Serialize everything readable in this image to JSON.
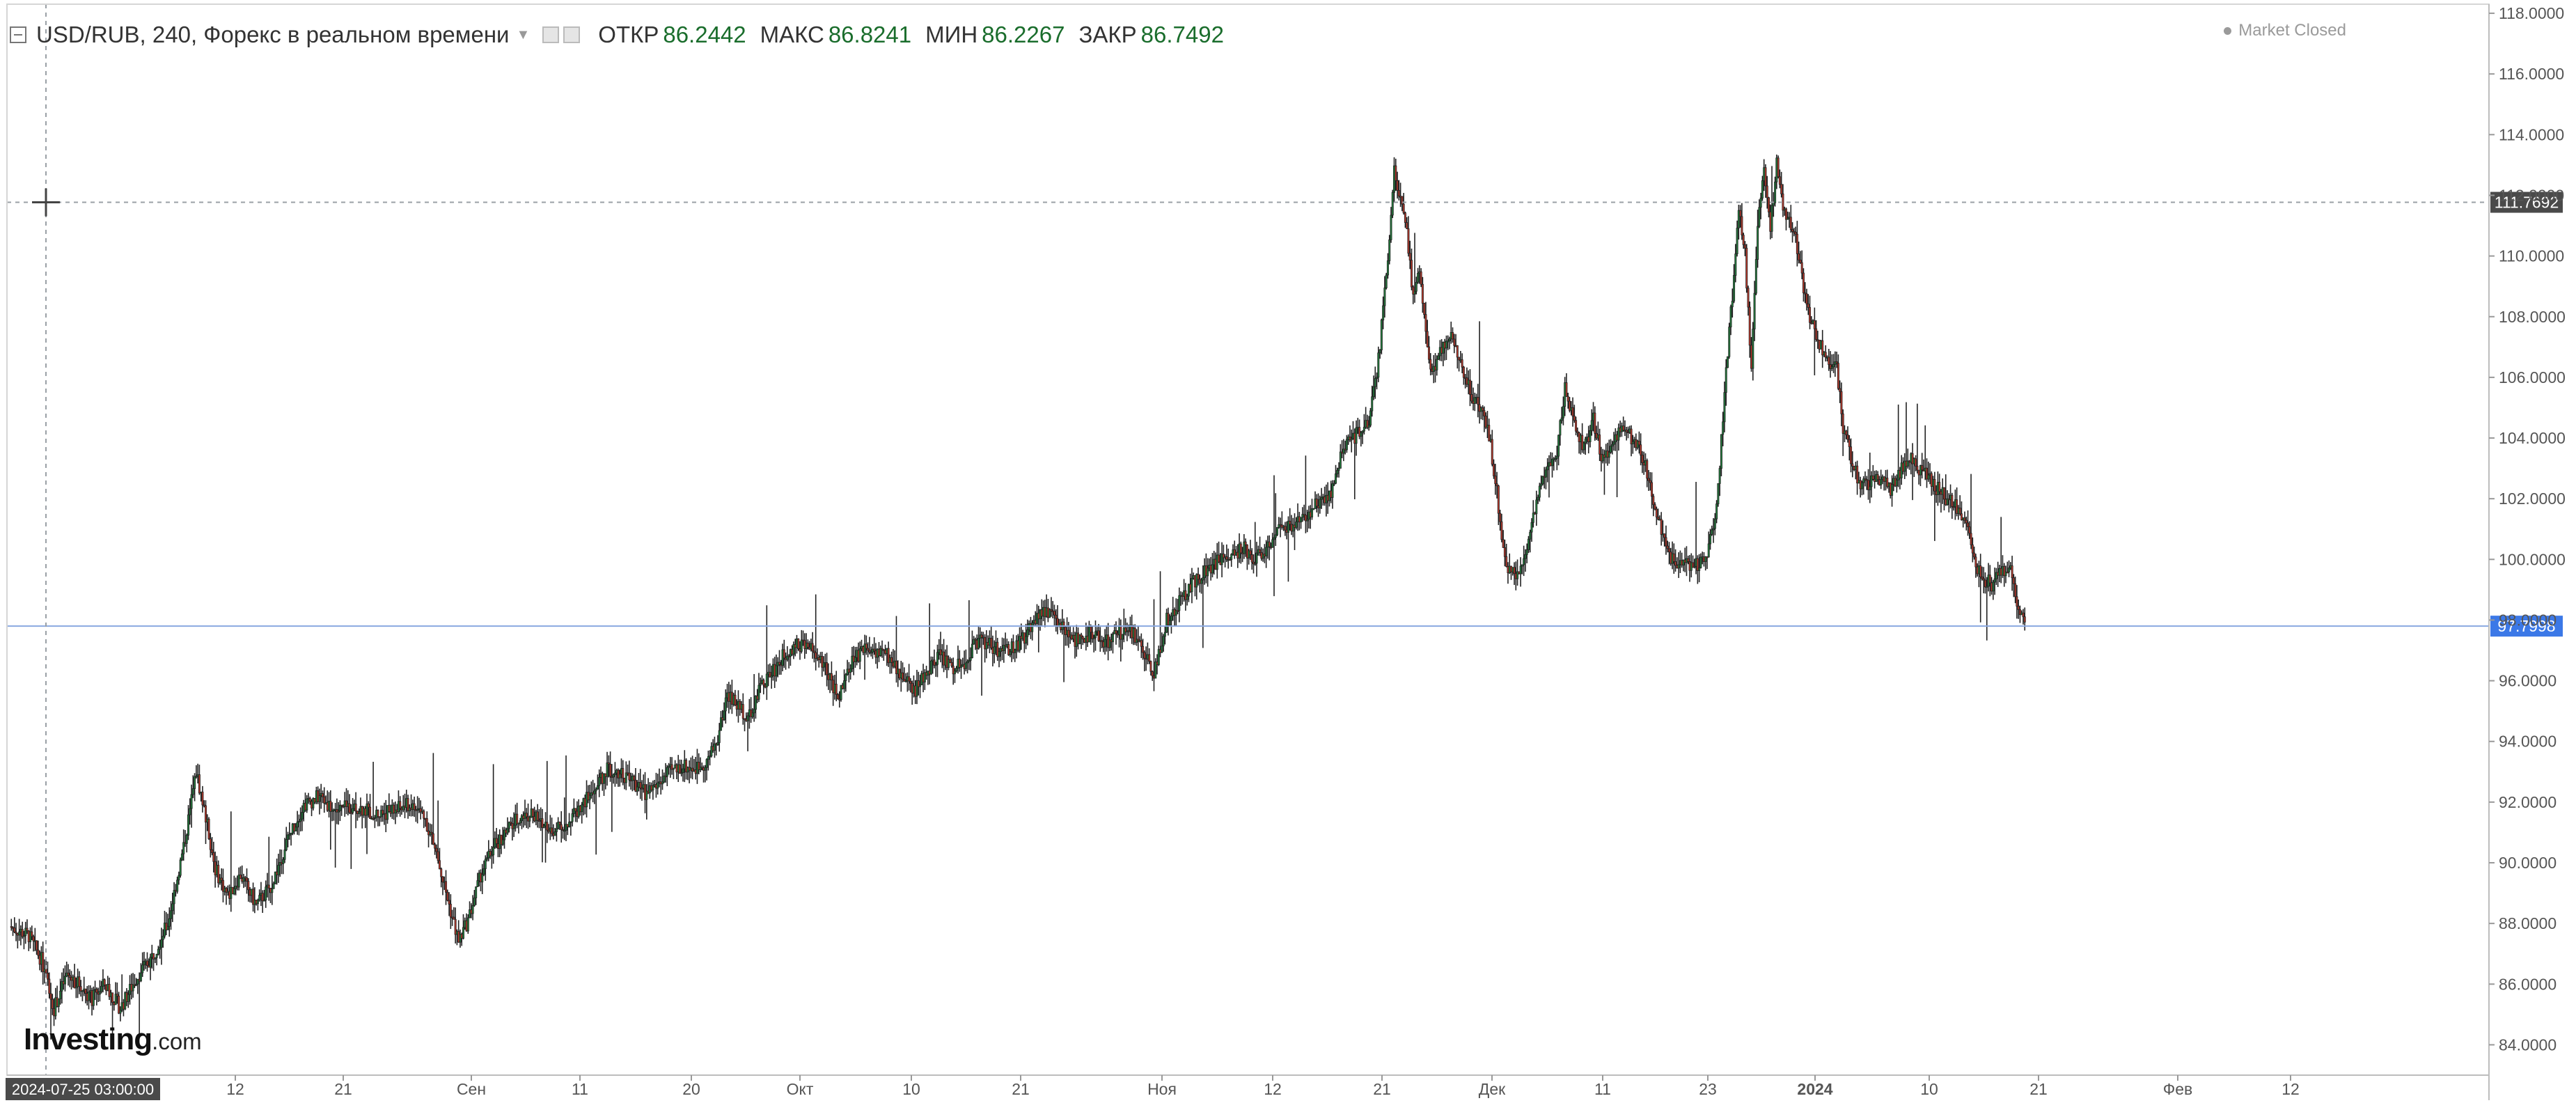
{
  "legend": {
    "symbol": "USD/RUB",
    "interval": "240",
    "source": "Форекс в реальном времени",
    "open_label": "ОТКР",
    "open_value": "86.2442",
    "high_label": "МАКС",
    "high_value": "86.8241",
    "low_label": "МИН",
    "low_value": "86.2267",
    "close_label": "ЗАКР",
    "close_value": "86.7492"
  },
  "market_status": "Market Closed",
  "logo": {
    "main": "Investing",
    "suffix": ".com"
  },
  "crosshair": {
    "price": "111.7692",
    "time": "2024-07-25 03:00:00"
  },
  "current_price": "97.7998",
  "colors": {
    "up": "#22813e",
    "down": "#c0392b",
    "wick": "#222222",
    "crosshair": "#9aa0a6",
    "current_line": "#8aa8e0",
    "current_tag": "#3b78e7",
    "crosshair_tag": "#4a4a4a"
  },
  "icons": [
    "collapse-icon",
    "eye-icon",
    "settings-icon",
    "crosshair-cursor-icon"
  ],
  "chart_data": {
    "type": "candlestick",
    "title": "USD/RUB, 240, Форекс в реальном времени",
    "ylim": [
      83,
      118.3
    ],
    "y_ticks": [
      "84.0000",
      "86.0000",
      "88.0000",
      "90.0000",
      "92.0000",
      "94.0000",
      "96.0000",
      "98.0000",
      "100.0000",
      "102.0000",
      "104.0000",
      "106.0000",
      "108.0000",
      "110.0000",
      "112.0000",
      "114.0000",
      "116.0000",
      "118.0000"
    ],
    "x_ticks": [
      "12",
      "21",
      "Сен",
      "11",
      "20",
      "Окт",
      "10",
      "21",
      "Ноя",
      "12",
      "21",
      "Дек",
      "11",
      "23",
      "2024",
      "10",
      "21",
      "Фев",
      "12"
    ],
    "x_tick_bold": [
      false,
      false,
      false,
      false,
      false,
      false,
      false,
      false,
      false,
      false,
      false,
      false,
      false,
      false,
      true,
      false,
      false,
      false,
      false
    ],
    "grid": false,
    "price_path": [
      [
        0,
        87.9
      ],
      [
        12,
        87.6
      ],
      [
        20,
        86.8
      ],
      [
        28,
        85.2
      ],
      [
        36,
        86.3
      ],
      [
        44,
        86.0
      ],
      [
        52,
        85.5
      ],
      [
        60,
        86.0
      ],
      [
        70,
        85.2
      ],
      [
        80,
        86.2
      ],
      [
        90,
        86.9
      ],
      [
        100,
        88.0
      ],
      [
        110,
        90.5
      ],
      [
        118,
        93.0
      ],
      [
        124,
        91.5
      ],
      [
        130,
        89.8
      ],
      [
        138,
        88.9
      ],
      [
        146,
        89.6
      ],
      [
        156,
        88.6
      ],
      [
        166,
        89.3
      ],
      [
        176,
        90.8
      ],
      [
        186,
        91.9
      ],
      [
        196,
        92.2
      ],
      [
        206,
        91.7
      ],
      [
        218,
        91.9
      ],
      [
        230,
        91.6
      ],
      [
        242,
        91.7
      ],
      [
        252,
        91.9
      ],
      [
        262,
        91.6
      ],
      [
        270,
        90.3
      ],
      [
        278,
        88.6
      ],
      [
        284,
        87.4
      ],
      [
        290,
        88.1
      ],
      [
        298,
        89.6
      ],
      [
        306,
        90.5
      ],
      [
        314,
        91.0
      ],
      [
        322,
        91.5
      ],
      [
        330,
        91.6
      ],
      [
        338,
        91.2
      ],
      [
        346,
        91.1
      ],
      [
        354,
        91.4
      ],
      [
        362,
        91.9
      ],
      [
        370,
        92.4
      ],
      [
        378,
        93.1
      ],
      [
        386,
        93.0
      ],
      [
        394,
        92.7
      ],
      [
        402,
        92.3
      ],
      [
        410,
        92.6
      ],
      [
        418,
        93.0
      ],
      [
        426,
        93.2
      ],
      [
        434,
        93.1
      ],
      [
        442,
        93.4
      ],
      [
        448,
        94.1
      ],
      [
        454,
        95.6
      ],
      [
        460,
        95.2
      ],
      [
        468,
        94.8
      ],
      [
        476,
        95.9
      ],
      [
        484,
        96.4
      ],
      [
        492,
        97.0
      ],
      [
        500,
        97.2
      ],
      [
        508,
        97.0
      ],
      [
        516,
        96.4
      ],
      [
        524,
        95.4
      ],
      [
        532,
        96.5
      ],
      [
        540,
        97.1
      ],
      [
        548,
        97.0
      ],
      [
        556,
        96.8
      ],
      [
        564,
        96.2
      ],
      [
        572,
        95.6
      ],
      [
        580,
        96.3
      ],
      [
        588,
        96.9
      ],
      [
        596,
        96.4
      ],
      [
        604,
        96.6
      ],
      [
        612,
        97.3
      ],
      [
        620,
        97.2
      ],
      [
        628,
        96.9
      ],
      [
        636,
        97.1
      ],
      [
        644,
        97.6
      ],
      [
        652,
        98.3
      ],
      [
        660,
        98.1
      ],
      [
        668,
        97.6
      ],
      [
        676,
        97.3
      ],
      [
        684,
        97.6
      ],
      [
        692,
        97.2
      ],
      [
        700,
        97.5
      ],
      [
        708,
        97.8
      ],
      [
        716,
        97.1
      ],
      [
        724,
        96.3
      ],
      [
        732,
        98.0
      ],
      [
        740,
        98.6
      ],
      [
        748,
        99.2
      ],
      [
        756,
        99.6
      ],
      [
        764,
        99.9
      ],
      [
        772,
        100.1
      ],
      [
        780,
        100.4
      ],
      [
        788,
        100.0
      ],
      [
        796,
        100.4
      ],
      [
        804,
        101.0
      ],
      [
        812,
        101.2
      ],
      [
        820,
        101.3
      ],
      [
        828,
        101.9
      ],
      [
        836,
        102.2
      ],
      [
        844,
        103.7
      ],
      [
        852,
        104.1
      ],
      [
        860,
        104.5
      ],
      [
        866,
        106.6
      ],
      [
        872,
        109.8
      ],
      [
        876,
        113.0
      ],
      [
        880,
        111.8
      ],
      [
        884,
        110.7
      ],
      [
        888,
        108.6
      ],
      [
        892,
        109.7
      ],
      [
        896,
        107.5
      ],
      [
        900,
        106.1
      ],
      [
        906,
        106.9
      ],
      [
        912,
        107.4
      ],
      [
        918,
        106.6
      ],
      [
        924,
        105.5
      ],
      [
        930,
        105.1
      ],
      [
        936,
        104.1
      ],
      [
        940,
        102.6
      ],
      [
        944,
        100.9
      ],
      [
        948,
        99.6
      ],
      [
        954,
        99.4
      ],
      [
        960,
        100.5
      ],
      [
        966,
        101.8
      ],
      [
        972,
        102.9
      ],
      [
        978,
        103.2
      ],
      [
        984,
        105.6
      ],
      [
        990,
        104.6
      ],
      [
        996,
        103.6
      ],
      [
        1002,
        104.6
      ],
      [
        1008,
        103.2
      ],
      [
        1014,
        103.8
      ],
      [
        1020,
        104.3
      ],
      [
        1026,
        104.0
      ],
      [
        1032,
        103.6
      ],
      [
        1038,
        102.5
      ],
      [
        1044,
        101.1
      ],
      [
        1050,
        100.0
      ],
      [
        1056,
        99.9
      ],
      [
        1064,
        99.8
      ],
      [
        1072,
        99.9
      ],
      [
        1078,
        101.0
      ],
      [
        1082,
        103.1
      ],
      [
        1086,
        106.3
      ],
      [
        1090,
        108.7
      ],
      [
        1094,
        111.7
      ],
      [
        1098,
        110.1
      ],
      [
        1102,
        106.2
      ],
      [
        1106,
        110.9
      ],
      [
        1110,
        113.0
      ],
      [
        1114,
        111.0
      ],
      [
        1118,
        113.0
      ],
      [
        1122,
        111.4
      ],
      [
        1126,
        111.1
      ],
      [
        1130,
        110.6
      ],
      [
        1134,
        109.3
      ],
      [
        1138,
        108.1
      ],
      [
        1144,
        107.2
      ],
      [
        1150,
        106.6
      ],
      [
        1156,
        106.3
      ],
      [
        1160,
        104.4
      ],
      [
        1166,
        103.1
      ],
      [
        1172,
        102.4
      ],
      [
        1178,
        102.6
      ],
      [
        1184,
        102.6
      ],
      [
        1190,
        102.3
      ],
      [
        1196,
        102.9
      ],
      [
        1202,
        103.3
      ],
      [
        1208,
        103.0
      ],
      [
        1214,
        102.7
      ],
      [
        1220,
        102.3
      ],
      [
        1226,
        102.0
      ],
      [
        1232,
        101.7
      ],
      [
        1238,
        101.3
      ],
      [
        1242,
        100.0
      ],
      [
        1248,
        99.4
      ],
      [
        1254,
        99.2
      ],
      [
        1260,
        99.6
      ],
      [
        1266,
        99.7
      ],
      [
        1270,
        98.6
      ],
      [
        1275,
        97.8
      ]
    ]
  }
}
